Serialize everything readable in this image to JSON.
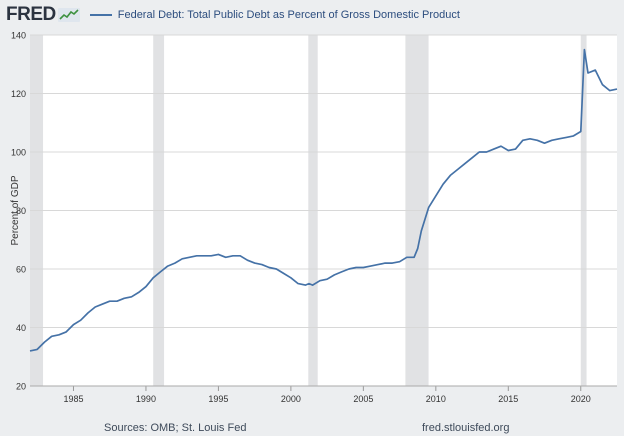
{
  "header": {
    "logo_text": "FRED",
    "series_title": "Federal Debt: Total Public Debt as Percent of Gross Domestic Product"
  },
  "footer": {
    "sources": "Sources: OMB; St. Louis Fed",
    "url": "fred.stlouisfed.org"
  },
  "colors": {
    "background": "#eceef0",
    "plot_background": "#ffffff",
    "line": "#4572a7",
    "recession_shading": "#e1e2e4",
    "gridline": "#d8d8d8"
  },
  "chart_data": {
    "type": "line",
    "title": "Federal Debt: Total Public Debt as Percent of Gross Domestic Product",
    "xlabel": "",
    "ylabel": "Percent of GDP",
    "xlim": [
      1982.0,
      2022.5
    ],
    "ylim": [
      20,
      140
    ],
    "y_ticks": [
      20,
      40,
      60,
      80,
      100,
      120,
      140
    ],
    "x_ticks": [
      1985,
      1990,
      1995,
      2000,
      2005,
      2010,
      2015,
      2020
    ],
    "grid": "horizontal",
    "legend": "top-left",
    "recessions": [
      [
        1981.5,
        1982.9
      ],
      [
        1990.5,
        1991.25
      ],
      [
        2001.2,
        2001.85
      ],
      [
        2007.9,
        2009.5
      ],
      [
        2020.0,
        2020.4
      ]
    ],
    "series": [
      {
        "name": "Federal Debt: Total Public Debt as Percent of Gross Domestic Product",
        "x": [
          1982.0,
          1982.5,
          1983.0,
          1983.5,
          1984.0,
          1984.5,
          1985.0,
          1985.5,
          1986.0,
          1986.5,
          1987.0,
          1987.5,
          1988.0,
          1988.5,
          1989.0,
          1989.5,
          1990.0,
          1990.5,
          1991.0,
          1991.5,
          1992.0,
          1992.5,
          1993.0,
          1993.5,
          1994.0,
          1994.5,
          1995.0,
          1995.5,
          1996.0,
          1996.5,
          1997.0,
          1997.5,
          1998.0,
          1998.5,
          1999.0,
          1999.5,
          2000.0,
          2000.5,
          2001.0,
          2001.25,
          2001.5,
          2002.0,
          2002.5,
          2003.0,
          2003.5,
          2004.0,
          2004.5,
          2005.0,
          2005.5,
          2006.0,
          2006.5,
          2007.0,
          2007.5,
          2008.0,
          2008.5,
          2008.75,
          2009.0,
          2009.5,
          2010.0,
          2010.5,
          2011.0,
          2011.5,
          2012.0,
          2012.5,
          2013.0,
          2013.5,
          2014.0,
          2014.5,
          2015.0,
          2015.5,
          2016.0,
          2016.5,
          2017.0,
          2017.5,
          2018.0,
          2018.5,
          2019.0,
          2019.5,
          2020.0,
          2020.25,
          2020.5,
          2021.0,
          2021.5,
          2022.0,
          2022.5
        ],
        "y": [
          32.0,
          32.5,
          35.0,
          37.0,
          37.5,
          38.5,
          41.0,
          42.5,
          45.0,
          47.0,
          48.0,
          49.0,
          49.0,
          50.0,
          50.5,
          52.0,
          54.0,
          57.0,
          59.0,
          61.0,
          62.0,
          63.5,
          64.0,
          64.5,
          64.5,
          64.5,
          65.0,
          64.0,
          64.5,
          64.5,
          63.0,
          62.0,
          61.5,
          60.5,
          60.0,
          58.5,
          57.0,
          55.0,
          54.5,
          55.0,
          54.5,
          56.0,
          56.5,
          58.0,
          59.0,
          60.0,
          60.5,
          60.5,
          61.0,
          61.5,
          62.0,
          62.0,
          62.5,
          64.0,
          64.0,
          67.0,
          73.0,
          81.0,
          85.0,
          89.0,
          92.0,
          94.0,
          96.0,
          98.0,
          100.0,
          100.0,
          101.0,
          102.0,
          100.5,
          101.0,
          104.0,
          104.5,
          104.0,
          103.0,
          104.0,
          104.5,
          105.0,
          105.5,
          107.0,
          135.0,
          127.0,
          128.0,
          123.0,
          121.0,
          121.5
        ]
      }
    ]
  }
}
